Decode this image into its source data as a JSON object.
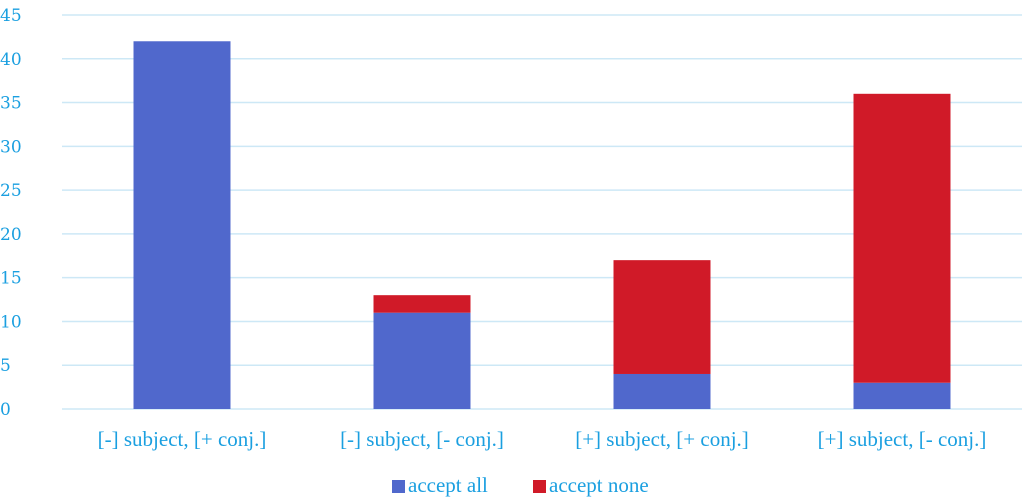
{
  "chart_data": {
    "type": "bar",
    "stacked": true,
    "categories": [
      "[-] subject, [+ conj.]",
      "[-] subject, [- conj.]",
      "[+] subject, [+ conj.]",
      "[+] subject, [- conj.]"
    ],
    "series": [
      {
        "name": "accept all",
        "values": [
          42,
          11,
          4,
          3
        ],
        "color": "#5068CC"
      },
      {
        "name": "accept none",
        "values": [
          0,
          2,
          13,
          33
        ],
        "color": "#D01A28"
      }
    ],
    "ylim": [
      0,
      45
    ],
    "yticks": [
      0,
      5,
      10,
      15,
      20,
      25,
      30,
      35,
      40,
      45
    ],
    "grid": true,
    "legend": "bottom-center",
    "tick_color": "#1A9FE0",
    "grid_color": "#CDE8F6"
  }
}
